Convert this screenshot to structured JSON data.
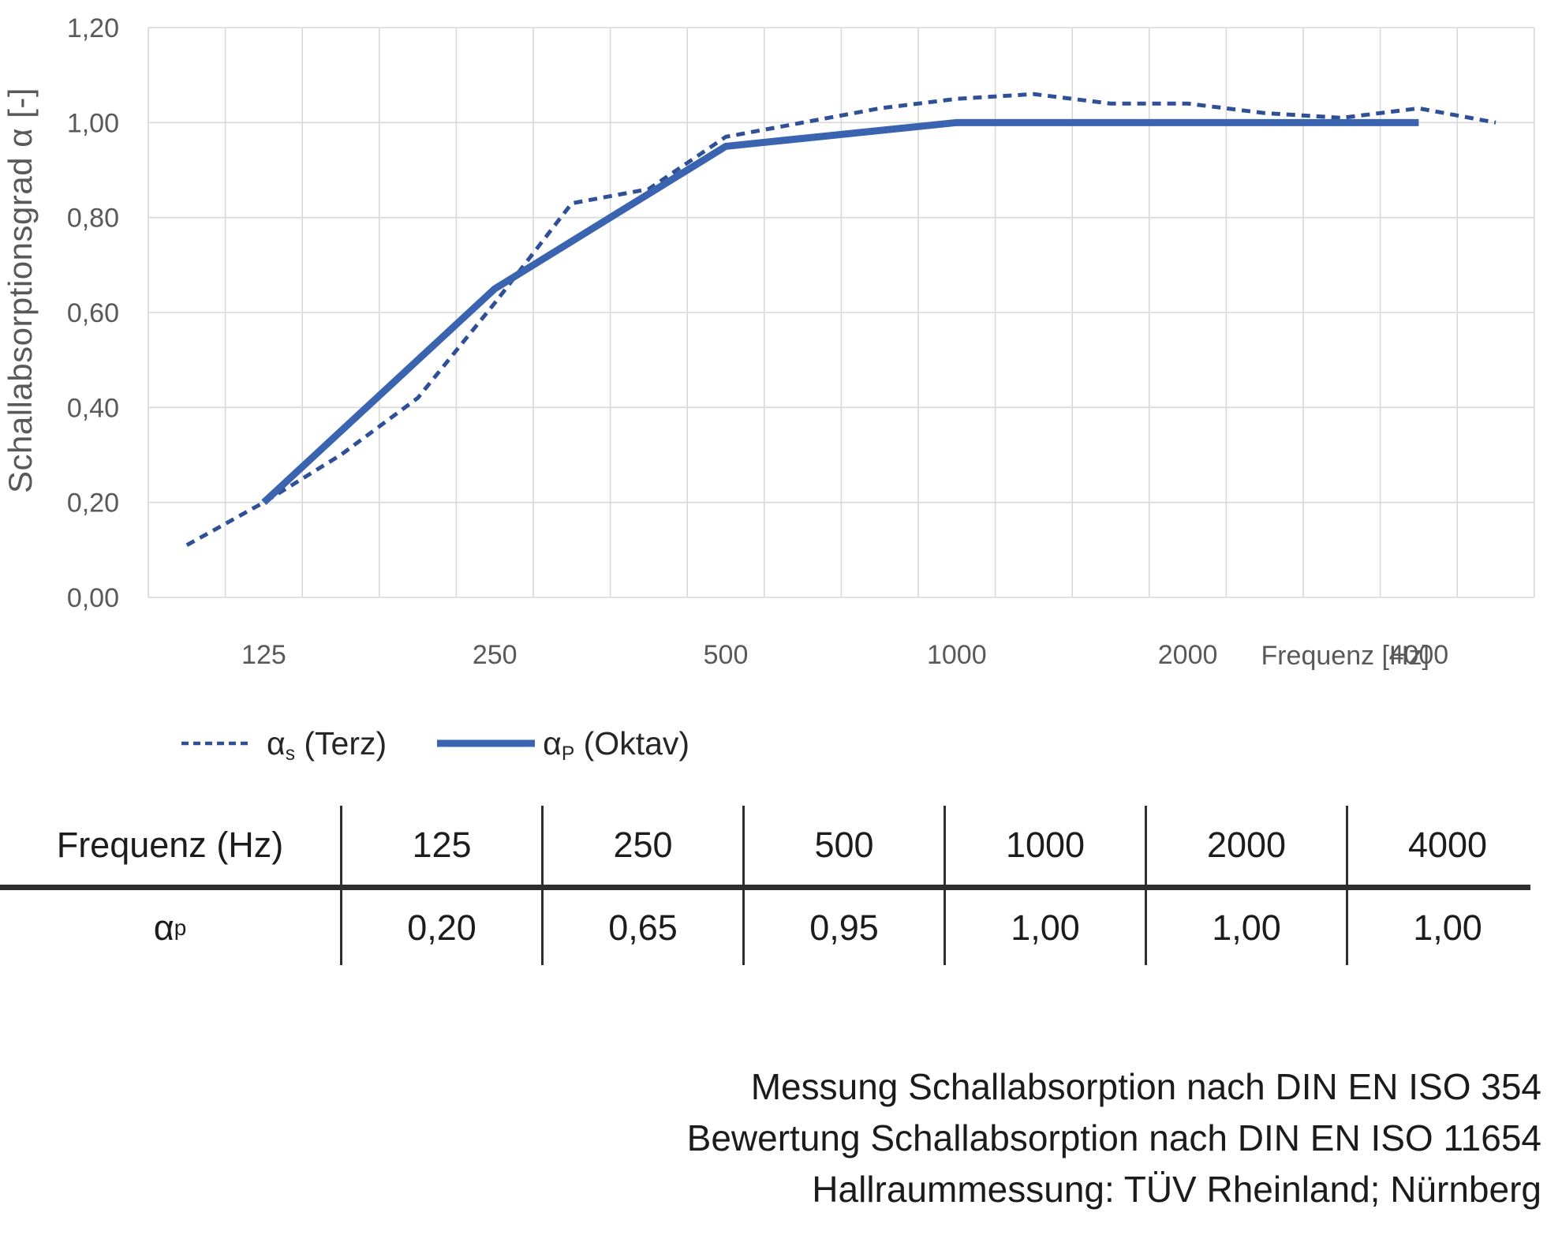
{
  "y_axis_title": "Schallabsorptionsgrad α [-]",
  "x_axis_title": "Frequenz [Hz]",
  "chart_data": {
    "type": "line",
    "x_mode": "third-octave-categorical",
    "categories": [
      100,
      125,
      160,
      200,
      250,
      315,
      400,
      500,
      630,
      800,
      1000,
      1250,
      1600,
      2000,
      2500,
      3150,
      4000,
      5000
    ],
    "x_tick_labels": [
      "125",
      "250",
      "500",
      "1000",
      "2000",
      "4000"
    ],
    "x_tick_freqs": [
      125,
      250,
      500,
      1000,
      2000,
      4000
    ],
    "y_ticks": [
      "0,00",
      "0,20",
      "0,40",
      "0,60",
      "0,80",
      "1,00",
      "1,20"
    ],
    "ylim": [
      0,
      1.2
    ],
    "grid": true,
    "legend_position": "bottom-left",
    "series": [
      {
        "name": "αs (Terz)",
        "style": "dashed",
        "color": "#2F4F96",
        "x": [
          100,
          125,
          160,
          200,
          250,
          315,
          400,
          500,
          630,
          800,
          1000,
          1250,
          1600,
          2000,
          2500,
          3150,
          4000,
          5000
        ],
        "values": [
          0.11,
          0.2,
          0.3,
          0.42,
          0.62,
          0.83,
          0.86,
          0.97,
          1.0,
          1.03,
          1.05,
          1.06,
          1.04,
          1.04,
          1.02,
          1.01,
          1.03,
          1.0
        ]
      },
      {
        "name": "αP (Oktav)",
        "style": "solid",
        "color": "#3A64B0",
        "x": [
          125,
          250,
          500,
          1000,
          2000,
          4000
        ],
        "values": [
          0.2,
          0.65,
          0.95,
          1.0,
          1.0,
          1.0
        ]
      }
    ]
  },
  "legend": {
    "s1": {
      "alpha": "α",
      "sub": "s",
      "rest": " (Terz)"
    },
    "s2": {
      "alpha": "α",
      "sub": "P",
      "rest": " (Oktav)"
    }
  },
  "table": {
    "row1_label": "Frequenz (Hz)",
    "row2_label_alpha": "α",
    "row2_label_sub": "p",
    "columns": [
      "125",
      "250",
      "500",
      "1000",
      "2000",
      "4000"
    ],
    "values": [
      "0,20",
      "0,65",
      "0,95",
      "1,00",
      "1,00",
      "1,00"
    ]
  },
  "footer": {
    "lines": [
      "Messung Schallabsorption nach DIN EN ISO 354",
      "Bewertung Schallabsorption nach DIN EN ISO 11654",
      "Hallraummessung: TÜV Rheinland; Nürnberg"
    ]
  },
  "colors": {
    "grid": "#D9D9D9",
    "axis_text": "#595959",
    "dashed_series": "#2F4F96",
    "solid_series": "#3A64B0",
    "table_lines": "#2e2e2e",
    "text_dark": "#1c1c1c"
  }
}
